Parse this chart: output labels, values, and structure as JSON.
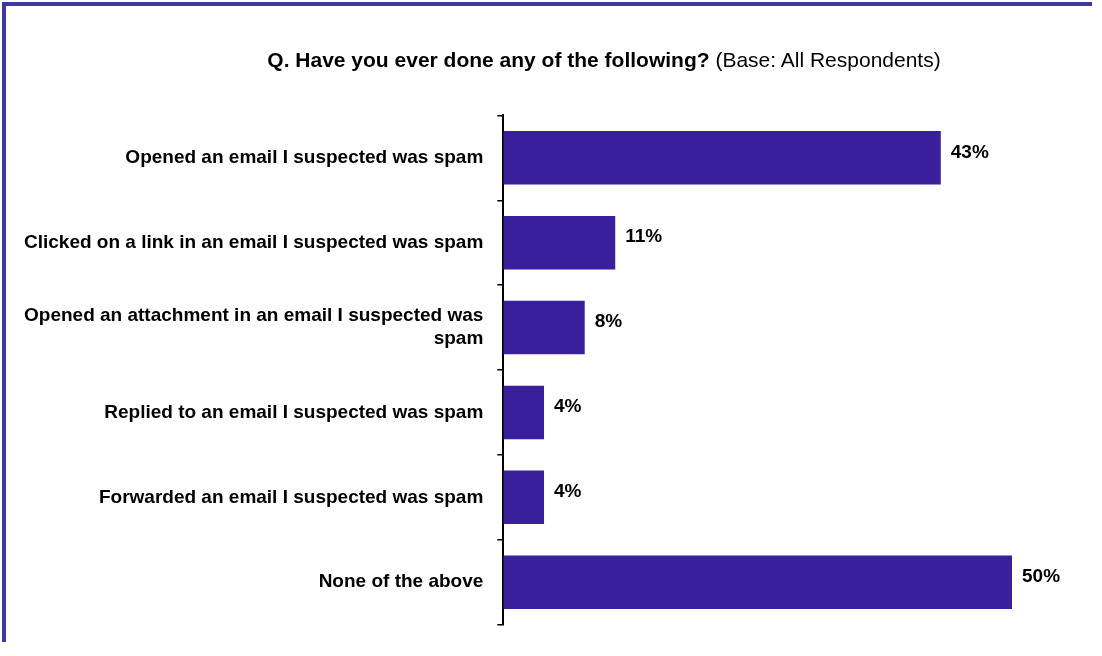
{
  "chart_data": {
    "type": "bar",
    "orientation": "horizontal",
    "title": "Q. Have you ever done any of the following?",
    "subtitle": "(Base: All Respondents)",
    "categories": [
      "Opened an email I suspected was spam",
      "Clicked on a link in an email I suspected was spam",
      "Opened an attachment in an email I suspected was spam",
      "Replied to an email I suspected was spam",
      "Forwarded an email I suspected was spam",
      "None of the above"
    ],
    "values": [
      43,
      11,
      8,
      4,
      4,
      50
    ],
    "value_labels": [
      "43%",
      "11%",
      "8%",
      "4%",
      "4%",
      "50%"
    ],
    "color": "#3a1f9c",
    "grid": false,
    "legend": false
  }
}
